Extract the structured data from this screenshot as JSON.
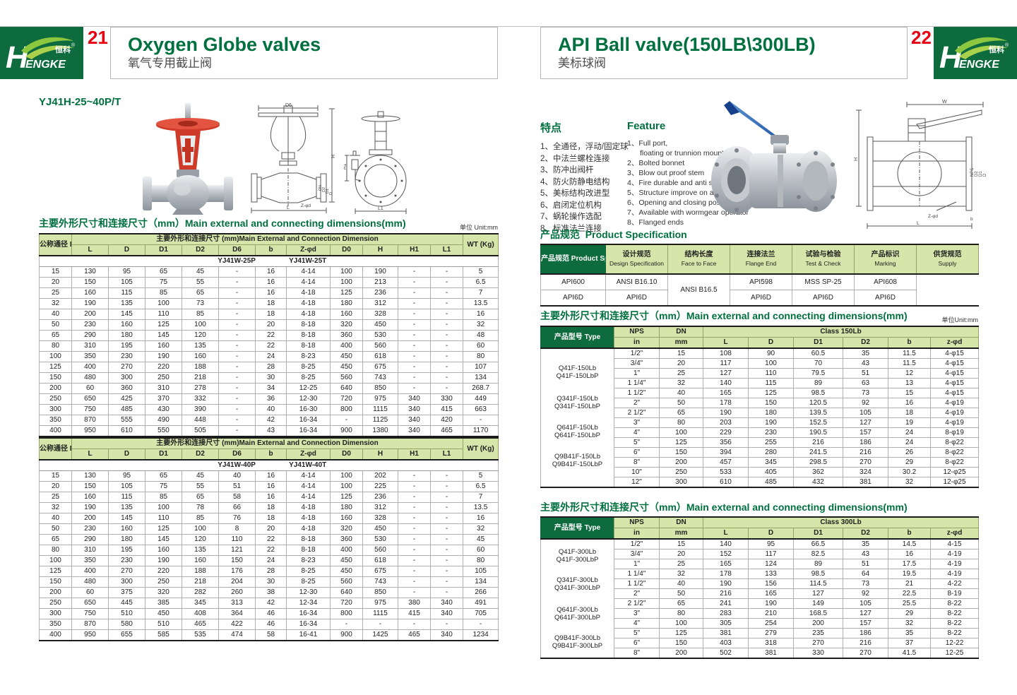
{
  "brand": {
    "h": "H",
    "rest": "ENGKE",
    "cn": "恒科",
    "reg": "®"
  },
  "colors": {
    "dark_green": "#0e6b3d",
    "light_green": "#d6e5aa",
    "accent_red": "#e60012",
    "title_green": "#00703f"
  },
  "page_left": {
    "page_no": "21",
    "title_en": "Oxygen Globe valves",
    "title_cn": "氧气专用截止阀",
    "model_title": "YJ41H-25~40P/T",
    "section_title": "主要外形尺寸和连接尺寸（mm）Main external and connecting dimensions(mm)",
    "unit_label": "单位 Unit:mm",
    "table_header": {
      "dn_label": "公称通径\nDN",
      "group_label": "主要外形和连接尺寸 (mm)Main External and Connection Dimension",
      "wt_label": "WT\n(Kg)",
      "columns": [
        "L",
        "D",
        "D1",
        "D2",
        "D6",
        "b",
        "Z-φd",
        "D0",
        "H",
        "H1",
        "L1"
      ]
    },
    "table1": {
      "models": [
        "YJ41W-25P",
        "YJ41W-25T"
      ],
      "rows": [
        [
          "15",
          "130",
          "95",
          "65",
          "45",
          "-",
          "16",
          "4-14",
          "100",
          "190",
          "-",
          "-",
          "5"
        ],
        [
          "20",
          "150",
          "105",
          "75",
          "55",
          "-",
          "16",
          "4-14",
          "100",
          "213",
          "-",
          "-",
          "6.5"
        ],
        [
          "25",
          "160",
          "115",
          "85",
          "65",
          "-",
          "16",
          "4-18",
          "125",
          "236",
          "-",
          "-",
          "7"
        ],
        [
          "32",
          "190",
          "135",
          "100",
          "73",
          "-",
          "18",
          "4-18",
          "180",
          "312",
          "-",
          "-",
          "13.5"
        ],
        [
          "40",
          "200",
          "145",
          "110",
          "85",
          "-",
          "18",
          "4-18",
          "160",
          "328",
          "-",
          "-",
          "16"
        ],
        [
          "50",
          "230",
          "160",
          "125",
          "100",
          "-",
          "20",
          "8-18",
          "320",
          "450",
          "-",
          "-",
          "32"
        ],
        [
          "65",
          "290",
          "180",
          "145",
          "120",
          "-",
          "22",
          "8-18",
          "360",
          "530",
          "-",
          "-",
          "48"
        ],
        [
          "80",
          "310",
          "195",
          "160",
          "135",
          "-",
          "22",
          "8-18",
          "400",
          "560",
          "-",
          "-",
          "60"
        ],
        [
          "100",
          "350",
          "230",
          "190",
          "160",
          "-",
          "24",
          "8-23",
          "450",
          "618",
          "-",
          "-",
          "80"
        ],
        [
          "125",
          "400",
          "270",
          "220",
          "188",
          "-",
          "28",
          "8-25",
          "450",
          "675",
          "-",
          "-",
          "107"
        ],
        [
          "150",
          "480",
          "300",
          "250",
          "218",
          "-",
          "30",
          "8-25",
          "560",
          "743",
          "-",
          "-",
          "134"
        ],
        [
          "200",
          "60",
          "360",
          "310",
          "278",
          "-",
          "34",
          "12-25",
          "640",
          "850",
          "-",
          "-",
          "268.7"
        ],
        [
          "250",
          "650",
          "425",
          "370",
          "332",
          "-",
          "36",
          "12-30",
          "720",
          "975",
          "340",
          "330",
          "449"
        ],
        [
          "300",
          "750",
          "485",
          "430",
          "390",
          "-",
          "40",
          "16-30",
          "800",
          "1115",
          "340",
          "415",
          "663"
        ],
        [
          "350",
          "870",
          "555",
          "490",
          "448",
          "-",
          "42",
          "16-34",
          "-",
          "1125",
          "340",
          "420",
          "-"
        ],
        [
          "400",
          "950",
          "610",
          "550",
          "505",
          "-",
          "43",
          "16-34",
          "900",
          "1380",
          "340",
          "465",
          "1170"
        ]
      ]
    },
    "table2": {
      "models": [
        "YJ41W-40P",
        "YJ41W-40T"
      ],
      "rows": [
        [
          "15",
          "130",
          "95",
          "65",
          "45",
          "40",
          "16",
          "4-14",
          "100",
          "202",
          "-",
          "-",
          "5"
        ],
        [
          "20",
          "150",
          "105",
          "75",
          "55",
          "51",
          "16",
          "4-14",
          "100",
          "225",
          "-",
          "-",
          "6.5"
        ],
        [
          "25",
          "160",
          "115",
          "85",
          "65",
          "58",
          "16",
          "4-14",
          "125",
          "236",
          "-",
          "-",
          "7"
        ],
        [
          "32",
          "190",
          "135",
          "100",
          "78",
          "66",
          "18",
          "4-18",
          "180",
          "312",
          "-",
          "-",
          "13.5"
        ],
        [
          "40",
          "200",
          "145",
          "110",
          "85",
          "76",
          "18",
          "4-18",
          "160",
          "328",
          "-",
          "-",
          "16"
        ],
        [
          "50",
          "230",
          "160",
          "125",
          "100",
          "8",
          "20",
          "4-18",
          "320",
          "450",
          "-",
          "-",
          "32"
        ],
        [
          "65",
          "290",
          "180",
          "145",
          "120",
          "110",
          "22",
          "8-18",
          "360",
          "530",
          "-",
          "-",
          "45"
        ],
        [
          "80",
          "310",
          "195",
          "160",
          "135",
          "121",
          "22",
          "8-18",
          "400",
          "560",
          "-",
          "-",
          "60"
        ],
        [
          "100",
          "350",
          "230",
          "190",
          "160",
          "150",
          "24",
          "8-23",
          "450",
          "618",
          "-",
          "-",
          "80"
        ],
        [
          "125",
          "400",
          "270",
          "220",
          "188",
          "176",
          "28",
          "8-25",
          "450",
          "675",
          "-",
          "-",
          "105"
        ],
        [
          "150",
          "480",
          "300",
          "250",
          "218",
          "204",
          "30",
          "8-25",
          "560",
          "743",
          "-",
          "-",
          "134"
        ],
        [
          "200",
          "60",
          "375",
          "320",
          "282",
          "260",
          "38",
          "12-30",
          "640",
          "850",
          "-",
          "-",
          "266"
        ],
        [
          "250",
          "650",
          "445",
          "385",
          "345",
          "313",
          "42",
          "12-34",
          "720",
          "975",
          "380",
          "340",
          "491"
        ],
        [
          "300",
          "750",
          "510",
          "450",
          "408",
          "364",
          "46",
          "16-34",
          "800",
          "1115",
          "415",
          "340",
          "705"
        ],
        [
          "350",
          "870",
          "580",
          "510",
          "465",
          "422",
          "46",
          "16-34",
          "-",
          "-",
          "-",
          "-",
          "-"
        ],
        [
          "400",
          "950",
          "655",
          "585",
          "535",
          "474",
          "58",
          "16-41",
          "900",
          "1425",
          "465",
          "340",
          "1234"
        ]
      ]
    },
    "drawings": {
      "front_dims": [
        "D6",
        "H",
        "L",
        "Z-φd"
      ],
      "front_stack": [
        "DN",
        "D2",
        "D1",
        "D"
      ],
      "side_dims": [
        "H1",
        "L1"
      ]
    }
  },
  "page_right": {
    "page_no": "22",
    "title_en": "API Ball valve(150LB\\300LB)",
    "title_cn": "美标球阀",
    "features_cn": {
      "title": "特点",
      "items": [
        "全通径，浮动/固定球",
        "中法兰螺栓连接",
        "防冲出阀杆",
        "防火防静电结构",
        "美标结构改进型",
        "启闭定位机构",
        "蜗轮操作选配",
        "标准法兰连接"
      ]
    },
    "features_en": {
      "title": "Feature",
      "items": [
        "Full port,\nfloating or trunnion mounte type",
        "Bolted bonnet",
        "Blow out proof stem",
        "Fire durable and anti static safety",
        "Structure improve on api",
        "Opening and closing position",
        "Available with wormgear operator",
        "Flanged ends"
      ]
    },
    "spec": {
      "title_cn": "产品规范",
      "title_en": "Product Specification",
      "row_header": "产品规范\nProduct\nSpecification",
      "columns": [
        {
          "cn": "设计规范",
          "en": "Design Specification"
        },
        {
          "cn": "结构长度",
          "en": "Face to Face"
        },
        {
          "cn": "连接法兰",
          "en": "Flange End"
        },
        {
          "cn": "试验与检验",
          "en": "Test & Check"
        },
        {
          "cn": "产品标识",
          "en": "Marking"
        },
        {
          "cn": "供货规范",
          "en": "Supply"
        }
      ],
      "row1": [
        "API600",
        "ANSI B16.10",
        "ANSI B16.5",
        "API598",
        "MSS SP-25",
        "API608"
      ],
      "row2": [
        "API6D",
        "API6D",
        null,
        "API6D",
        "API6D",
        "API6D"
      ]
    },
    "dim_title": "主要外形尺寸和连接尺寸（mm）Main external and connecting dimensions(mm)",
    "unit_label": "单位Unit:mm",
    "ball_header": {
      "type_label": "产品型号\nType",
      "nps": "NPS",
      "in_unit": "in",
      "dn": "DN",
      "mm_unit": "mm",
      "columns": [
        "L",
        "D",
        "D1",
        "D2",
        "b",
        "z-φd"
      ]
    },
    "table150": {
      "class_label": "Class 150Lb",
      "types": [
        [
          "Q41F-150Lb",
          "Q41F-150LbP"
        ],
        [
          "Q341F-150Lb",
          "Q341F-150LbP"
        ],
        [
          "Q641F-150Lb",
          "Q641F-150LbP"
        ],
        [
          "Q9B41F-150Lb",
          "Q9B41F-150LbP"
        ]
      ],
      "rows": [
        [
          "1/2\"",
          "15",
          "108",
          "90",
          "60.5",
          "35",
          "11.5",
          "4-φ15"
        ],
        [
          "3/4\"",
          "20",
          "117",
          "100",
          "70",
          "43",
          "11.5",
          "4-φ15"
        ],
        [
          "1\"",
          "25",
          "127",
          "110",
          "79.5",
          "51",
          "12",
          "4-φ15"
        ],
        [
          "1 1/4\"",
          "32",
          "140",
          "115",
          "89",
          "63",
          "13",
          "4-φ15"
        ],
        [
          "1 1/2\"",
          "40",
          "165",
          "125",
          "98.5",
          "73",
          "15",
          "4-φ15"
        ],
        [
          "2\"",
          "50",
          "178",
          "150",
          "120.5",
          "92",
          "16",
          "4-φ19"
        ],
        [
          "2 1/2\"",
          "65",
          "190",
          "180",
          "139.5",
          "105",
          "18",
          "4-φ19"
        ],
        [
          "3\"",
          "80",
          "203",
          "190",
          "152.5",
          "127",
          "19",
          "4-φ19"
        ],
        [
          "4\"",
          "100",
          "229",
          "230",
          "190.5",
          "157",
          "24",
          "8-φ19"
        ],
        [
          "5\"",
          "125",
          "356",
          "255",
          "216",
          "186",
          "24",
          "8-φ22"
        ],
        [
          "6\"",
          "150",
          "394",
          "280",
          "241.5",
          "216",
          "26",
          "8-φ22"
        ],
        [
          "8\"",
          "200",
          "457",
          "345",
          "298.5",
          "270",
          "29",
          "8-φ22"
        ],
        [
          "10\"",
          "250",
          "533",
          "405",
          "362",
          "324",
          "30.2",
          "12-φ25"
        ],
        [
          "12\"",
          "300",
          "610",
          "485",
          "432",
          "381",
          "32",
          "12-φ25"
        ]
      ]
    },
    "table300": {
      "class_label": "Class 300Lb",
      "types": [
        [
          "Q41F-300Lb",
          "Q41F-300LbP"
        ],
        [
          "Q341F-300Lb",
          "Q341F-300LbP"
        ],
        [
          "Q641F-300Lb",
          "Q641F-300LbP"
        ],
        [
          "Q9B41F-300Lb",
          "Q9B41F-300LbP"
        ]
      ],
      "rows": [
        [
          "1/2\"",
          "15",
          "140",
          "95",
          "66.5",
          "35",
          "14.5",
          "4-15"
        ],
        [
          "3/4\"",
          "20",
          "152",
          "117",
          "82.5",
          "43",
          "16",
          "4-19"
        ],
        [
          "1\"",
          "25",
          "165",
          "124",
          "89",
          "51",
          "17.5",
          "4-19"
        ],
        [
          "1 1/4\"",
          "32",
          "178",
          "133",
          "98.5",
          "64",
          "19.5",
          "4-19"
        ],
        [
          "1 1/2\"",
          "40",
          "190",
          "156",
          "114.5",
          "73",
          "21",
          "4-22"
        ],
        [
          "2\"",
          "50",
          "216",
          "165",
          "127",
          "92",
          "22.5",
          "8-19"
        ],
        [
          "2 1/2\"",
          "65",
          "241",
          "190",
          "149",
          "105",
          "25.5",
          "8-22"
        ],
        [
          "3\"",
          "80",
          "283",
          "210",
          "168.5",
          "127",
          "29",
          "8-22"
        ],
        [
          "4\"",
          "100",
          "305",
          "254",
          "200",
          "157",
          "32",
          "8-22"
        ],
        [
          "5\"",
          "125",
          "381",
          "279",
          "235",
          "186",
          "35",
          "8-22"
        ],
        [
          "6\"",
          "150",
          "403",
          "318",
          "270",
          "216",
          "37",
          "12-22"
        ],
        [
          "8\"",
          "200",
          "502",
          "381",
          "330",
          "270",
          "41.5",
          "12-25"
        ]
      ]
    },
    "drawing": {
      "dims": [
        "W",
        "H",
        "L",
        "Z-φd",
        "b"
      ],
      "stack": [
        "NPS",
        "D2",
        "D1",
        "D"
      ]
    }
  }
}
